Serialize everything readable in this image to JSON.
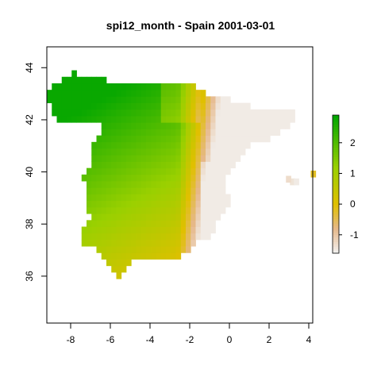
{
  "chart_data": {
    "type": "heatmap",
    "title": "spi12_month - Spain 2001-03-01",
    "xlabel": "",
    "ylabel": "",
    "xlim": [
      -9.2,
      4.2
    ],
    "ylim": [
      34.2,
      44.8
    ],
    "x_ticks": [
      "-8",
      "-6",
      "-4",
      "-2",
      "0",
      "2",
      "4"
    ],
    "x_tick_values": [
      -8,
      -6,
      -4,
      -2,
      0,
      2,
      4
    ],
    "y_ticks": [
      "36",
      "38",
      "40",
      "42",
      "44"
    ],
    "y_tick_values": [
      36,
      38,
      40,
      42,
      44
    ],
    "legend": {
      "placement": "right",
      "ticks": [
        "2",
        "1",
        "0",
        "-1"
      ],
      "tick_values": [
        2,
        1,
        0,
        -1
      ],
      "range": [
        -1.6,
        2.9
      ],
      "colors": [
        "#f2f2f2",
        "#e6b88a",
        "#e0c000",
        "#9ad000",
        "#00a600"
      ]
    },
    "grid": false
  }
}
